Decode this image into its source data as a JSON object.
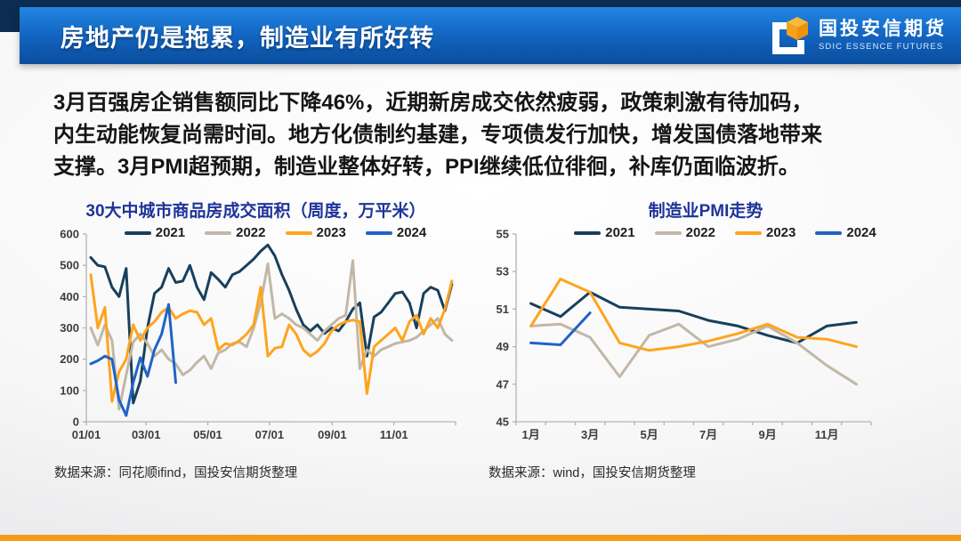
{
  "header": {
    "title": "房地产仍是拖累，制造业有所好转",
    "logo": {
      "name_cn": "国投安信期货",
      "name_en": "SDIC ESSENCE FUTURES"
    }
  },
  "body": {
    "line1": "3月百强房企销售额同比下降46%，近期新房成交依然疲弱，政策刺激有待加码，",
    "line2": "内生动能恢复尚需时间。地方化债制约基建，专项债发行加快，增发国债落地带来",
    "line3": "支撑。3月PMI超预期，制造业整体好转，PPI继续低位徘徊，补库仍面临波折。"
  },
  "colors": {
    "header_navy": "#0c2d51",
    "header_blue": "#1366c2",
    "chart_title_blue": "#1f3499",
    "accent_orange": "#f29d16",
    "series_2021": "#17405c",
    "series_2022": "#c2b7a7",
    "series_2023": "#ffa41e",
    "series_2024": "#2063c6"
  },
  "chart_data": [
    {
      "type": "line",
      "title": "30大中城市商品房成交面积（周度，万平米）",
      "source": "数据来源：同花顺ifind，国投安信期货整理",
      "ylim": [
        0,
        600
      ],
      "ytick_step": 100,
      "grid": false,
      "legend_position": "top",
      "x_start": 0.012,
      "x_step": 0.01918,
      "xticks": [
        {
          "pos": 0.0,
          "label": "01/01"
        },
        {
          "pos": 0.162,
          "label": "03/01"
        },
        {
          "pos": 0.329,
          "label": "05/01"
        },
        {
          "pos": 0.496,
          "label": "07/01"
        },
        {
          "pos": 0.666,
          "label": "09/01"
        },
        {
          "pos": 0.833,
          "label": "11/01"
        }
      ],
      "tickmarks": [
        0,
        0.162,
        0.329,
        0.496,
        0.666,
        0.833,
        1.0
      ],
      "series": [
        {
          "name": "2021",
          "color": "#17405c",
          "values": [
            525,
            500,
            495,
            430,
            400,
            490,
            60,
            130,
            300,
            410,
            430,
            490,
            445,
            450,
            500,
            430,
            390,
            477,
            455,
            430,
            470,
            480,
            500,
            520,
            545,
            565,
            530,
            470,
            420,
            360,
            310,
            290,
            310,
            282,
            300,
            290,
            320,
            360,
            380,
            210,
            335,
            350,
            380,
            410,
            415,
            380,
            300,
            410,
            430,
            420,
            355,
            440
          ]
        },
        {
          "name": "2022",
          "color": "#c2b7a7",
          "values": [
            300,
            245,
            310,
            260,
            40,
            150,
            255,
            280,
            250,
            210,
            230,
            200,
            185,
            150,
            165,
            190,
            210,
            170,
            220,
            230,
            250,
            255,
            240,
            300,
            380,
            505,
            330,
            345,
            330,
            310,
            300,
            280,
            260,
            290,
            310,
            330,
            340,
            515,
            170,
            230,
            210,
            230,
            240,
            250,
            255,
            260,
            270,
            290,
            310,
            330,
            280,
            260
          ]
        },
        {
          "name": "2023",
          "color": "#ffa41e",
          "values": [
            470,
            300,
            365,
            65,
            160,
            200,
            310,
            260,
            300,
            320,
            350,
            365,
            330,
            345,
            355,
            350,
            310,
            330,
            230,
            250,
            245,
            260,
            280,
            310,
            430,
            210,
            235,
            240,
            310,
            280,
            230,
            210,
            225,
            250,
            290,
            310,
            320,
            325,
            320,
            90,
            240,
            260,
            280,
            300,
            260,
            320,
            340,
            280,
            330,
            300,
            360,
            450
          ]
        },
        {
          "name": "2024",
          "color": "#2063c6",
          "values": [
            185,
            195,
            210,
            200,
            70,
            20,
            125,
            205,
            145,
            230,
            280,
            375,
            125
          ]
        }
      ]
    },
    {
      "type": "line",
      "title": "制造业PMI走势",
      "source": "数据来源：wind，国投安信期货整理",
      "ylim": [
        45,
        55
      ],
      "ytick_step": 2,
      "grid": false,
      "legend_position": "top",
      "x_start": 0.04167,
      "x_step": 0.08333,
      "xticks": [
        {
          "pos": 0.04167,
          "label": "1月"
        },
        {
          "pos": 0.20833,
          "label": "3月"
        },
        {
          "pos": 0.375,
          "label": "5月"
        },
        {
          "pos": 0.54167,
          "label": "7月"
        },
        {
          "pos": 0.70833,
          "label": "9月"
        },
        {
          "pos": 0.875,
          "label": "11月"
        }
      ],
      "tickmarks": [
        0,
        0.0833,
        0.1667,
        0.25,
        0.3333,
        0.4167,
        0.5,
        0.5833,
        0.6667,
        0.75,
        0.8333,
        0.9167,
        1.0
      ],
      "series": [
        {
          "name": "2021",
          "color": "#17405c",
          "values": [
            51.3,
            50.6,
            51.9,
            51.1,
            51.0,
            50.9,
            50.4,
            50.1,
            49.6,
            49.2,
            50.1,
            50.3
          ]
        },
        {
          "name": "2022",
          "color": "#c2b7a7",
          "values": [
            50.1,
            50.2,
            49.5,
            47.4,
            49.6,
            50.2,
            49.0,
            49.4,
            50.1,
            49.2,
            48.0,
            47.0
          ]
        },
        {
          "name": "2023",
          "color": "#ffa41e",
          "values": [
            50.1,
            52.6,
            51.9,
            49.2,
            48.8,
            49.0,
            49.3,
            49.7,
            50.2,
            49.5,
            49.4,
            49.0
          ]
        },
        {
          "name": "2024",
          "color": "#2063c6",
          "values": [
            49.2,
            49.1,
            50.8
          ]
        }
      ]
    }
  ]
}
